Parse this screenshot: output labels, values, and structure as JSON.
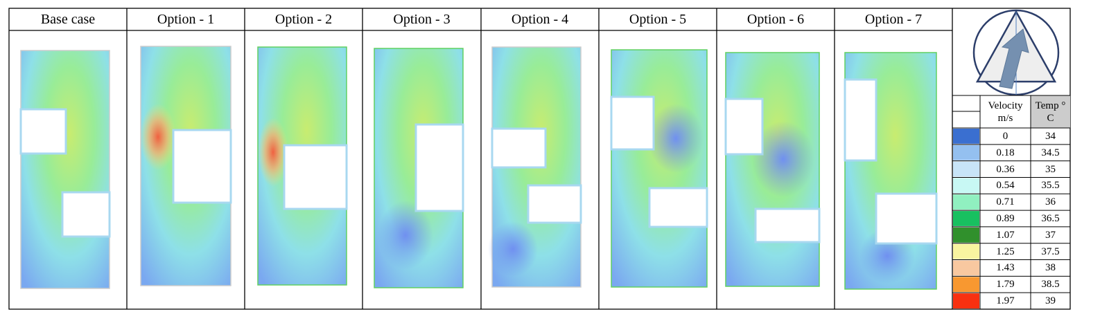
{
  "columns": [
    "Base case",
    "Option - 1",
    "Option - 2",
    "Option - 3",
    "Option - 4",
    "Option - 5",
    "Option - 6",
    "Option - 7"
  ],
  "legend": {
    "headers": [
      "Velocity m/s",
      "Temp ° C"
    ],
    "rows": [
      {
        "color": "#3a6fd0",
        "velocity": 0,
        "temp": 34
      },
      {
        "color": "#94c0f0",
        "velocity": 0.18,
        "temp": 34.5
      },
      {
        "color": "#c8e4f8",
        "velocity": 0.36,
        "temp": 35
      },
      {
        "color": "#c8f8f4",
        "velocity": 0.54,
        "temp": 35.5
      },
      {
        "color": "#90f0c0",
        "velocity": 0.71,
        "temp": 36
      },
      {
        "color": "#18c060",
        "velocity": 0.89,
        "temp": 36.5
      },
      {
        "color": "#30902c",
        "velocity": 1.07,
        "temp": 37
      },
      {
        "color": "#f8f4a0",
        "velocity": 1.25,
        "temp": 37.5
      },
      {
        "color": "#f8c8a0",
        "velocity": 1.43,
        "temp": 38
      },
      {
        "color": "#f89830",
        "velocity": 1.79,
        "temp": 38.5
      },
      {
        "color": "#f83010",
        "velocity": 1.97,
        "temp": 39
      }
    ]
  }
}
